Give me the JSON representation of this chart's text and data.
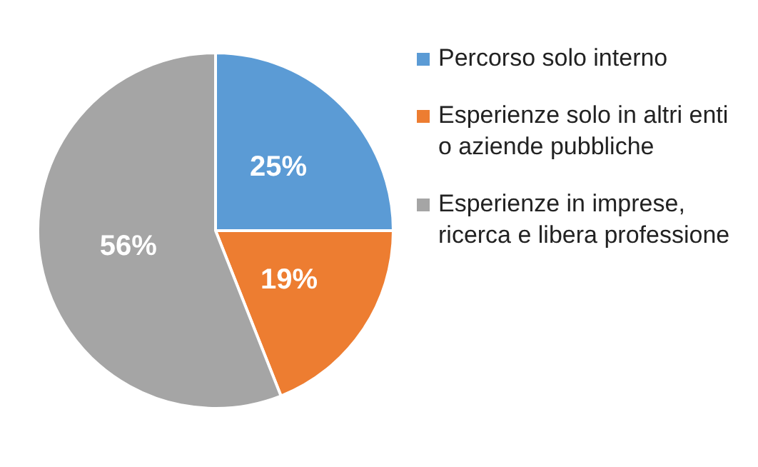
{
  "chart_data": {
    "type": "pie",
    "categories": [
      "Percorso solo interno",
      "Esperienze solo in altri enti o aziende pubbliche",
      "Esperienze in imprese, ricerca e libera professione"
    ],
    "values": [
      25,
      19,
      56
    ],
    "value_labels": [
      "25%",
      "19%",
      "56%"
    ],
    "colors": [
      "#5b9bd5",
      "#ed7d31",
      "#a5a5a5"
    ],
    "legend": "right"
  }
}
